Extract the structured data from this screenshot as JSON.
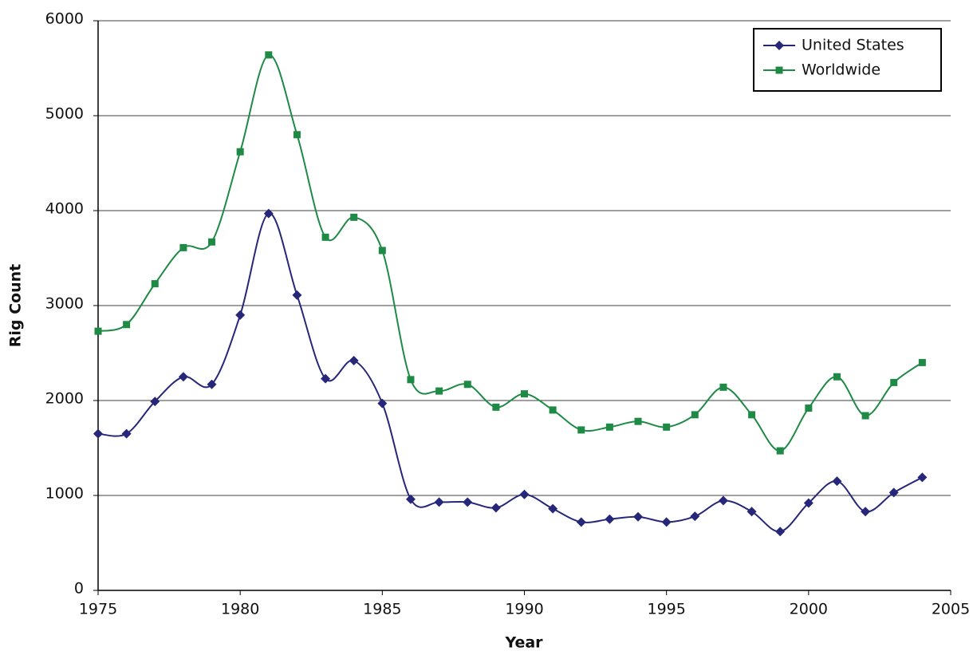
{
  "chart_data": {
    "type": "line",
    "x_label": "Year",
    "y_label": "Rig Count",
    "x": [
      1975,
      1976,
      1977,
      1978,
      1979,
      1980,
      1981,
      1982,
      1983,
      1984,
      1985,
      1986,
      1987,
      1988,
      1989,
      1990,
      1991,
      1992,
      1993,
      1994,
      1995,
      1996,
      1997,
      1998,
      1999,
      2000,
      2001,
      2002,
      2003,
      2004
    ],
    "series": [
      {
        "name": "United States",
        "color": "#27277a",
        "marker": "diamond",
        "values": [
          1650,
          1650,
          1990,
          2250,
          2170,
          2900,
          3970,
          3110,
          2230,
          2420,
          1970,
          960,
          930,
          930,
          870,
          1010,
          860,
          720,
          750,
          775,
          720,
          780,
          945,
          830,
          620,
          920,
          1150,
          830,
          1030,
          1190
        ]
      },
      {
        "name": "Worldwide",
        "color": "#1e8a45",
        "marker": "square",
        "values": [
          2730,
          2800,
          3230,
          3610,
          3670,
          4620,
          5640,
          4800,
          3720,
          3930,
          3580,
          2220,
          2100,
          2170,
          1930,
          2070,
          1900,
          1690,
          1720,
          1780,
          1720,
          1850,
          2140,
          1850,
          1470,
          1920,
          2250,
          1840,
          2190,
          2400
        ]
      }
    ],
    "xlim": [
      1975,
      2005
    ],
    "xticks": [
      1975,
      1980,
      1985,
      1990,
      1995,
      2000,
      2005
    ],
    "ylim": [
      0,
      6000
    ],
    "yticks": [
      0,
      1000,
      2000,
      3000,
      4000,
      5000,
      6000
    ],
    "grid": true,
    "legend": "top-right"
  }
}
